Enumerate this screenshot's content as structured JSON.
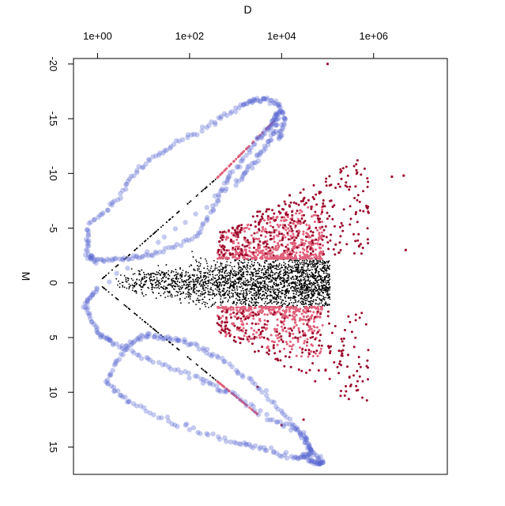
{
  "chart_data": {
    "type": "scatter",
    "title": "",
    "xlabel": "D",
    "ylabel": "M",
    "x_scale": "log10",
    "x_axis_position": "top",
    "y_axis_reversed": true,
    "y_axis_rotated_labels": true,
    "xlim": [
      0.3,
      40000000
    ],
    "ylim": [
      -20.5,
      17.5
    ],
    "x_ticks": [
      1,
      100,
      10000,
      1000000
    ],
    "x_tick_labels": [
      "1e+00",
      "1e+02",
      "1e+04",
      "1e+06"
    ],
    "y_ticks": [
      -20,
      -15,
      -10,
      -5,
      0,
      5,
      10,
      15
    ],
    "y_tick_labels": [
      "-20",
      "-15",
      "-10",
      "-5",
      "0",
      "5",
      "10",
      "15"
    ],
    "grid": false,
    "legend": "none",
    "series": [
      {
        "color": "#000000",
        "marker": "small dot",
        "description_points": "dense fan of points",
        "envelope": [
          [
            1,
            0
          ],
          [
            400,
            -9.6
          ],
          [
            400,
            9.0
          ]
        ]
      },
      {
        "color": "#9b0a2a",
        "marker": "dot",
        "points": [
          [
            1200,
            -2.5
          ],
          [
            3000,
            -6.5
          ],
          [
            6000,
            -4.0
          ],
          [
            15000,
            -8.0
          ],
          [
            30000,
            -5.5
          ],
          [
            80000,
            -7.0
          ],
          [
            200000,
            -9.5
          ],
          [
            2500000,
            -9.7
          ],
          [
            4500000,
            -9.8
          ],
          [
            5000000,
            -3.0
          ],
          [
            150000,
            -3.5
          ],
          [
            20000,
            5.0
          ],
          [
            5000,
            3.5
          ],
          [
            40000,
            6.5
          ],
          [
            90000,
            8.0
          ],
          [
            30000,
            12.5
          ],
          [
            10000,
            13.0
          ],
          [
            3000,
            9.5
          ],
          [
            600,
            4.0
          ],
          [
            100000,
            -20.0
          ]
        ]
      },
      {
        "color": "#e0607a",
        "marker": "dot",
        "description_points": "highlighted points at |M| > 2",
        "upper_edge": [
          [
            400,
            -9.6
          ],
          [
            7000,
            -14.8
          ]
        ],
        "lower_edge": [
          [
            400,
            9.0
          ],
          [
            3000,
            12.0
          ]
        ]
      },
      {
        "color": "#5a66d0",
        "marker": "translucent blob",
        "description_points": "closed contour of translucent blue points",
        "path": [
          [
            8000,
            -13.0
          ],
          [
            12000,
            -15.0
          ],
          [
            8000,
            -16.5
          ],
          [
            3000,
            -16.8
          ],
          [
            1500,
            -16.3
          ],
          [
            300,
            -14.5
          ],
          [
            40,
            -12.5
          ],
          [
            8,
            -10.5
          ],
          [
            2.5,
            -7.5
          ],
          [
            0.6,
            -5.0
          ],
          [
            0.6,
            -2.5
          ],
          [
            1,
            -2.0
          ],
          [
            4,
            -2.2
          ],
          [
            20,
            -2.6
          ],
          [
            150,
            -4.3
          ],
          [
            400,
            -7.5
          ],
          [
            800,
            -10.0
          ],
          [
            3000,
            -13.0
          ],
          [
            6000,
            -14.5
          ],
          [
            9000,
            -15.5
          ],
          [
            6000,
            -13.0
          ],
          [
            2500,
            -11.0
          ],
          [
            1000,
            -9.0
          ],
          [
            1,
            0.5
          ],
          [
            0.5,
            2.0
          ],
          [
            1,
            4.5
          ],
          [
            2,
            5.5
          ],
          [
            15,
            7.0
          ],
          [
            150,
            8.7
          ],
          [
            700,
            10.0
          ],
          [
            6000,
            12.5
          ],
          [
            30000,
            13.8
          ],
          [
            45000,
            15.5
          ],
          [
            20000,
            16.0
          ],
          [
            4000,
            15.2
          ],
          [
            800,
            14.5
          ],
          [
            60,
            13.0
          ],
          [
            5,
            11.0
          ],
          [
            1.5,
            9.0
          ],
          [
            4,
            6.0
          ],
          [
            10,
            4.8
          ],
          [
            30,
            5.0
          ],
          [
            100,
            5.5
          ],
          [
            500,
            7.0
          ],
          [
            3000,
            9.5
          ],
          [
            15000,
            12.5
          ],
          [
            40000,
            15.0
          ],
          [
            80000,
            16.5
          ],
          [
            55000,
            16.5
          ],
          [
            30000,
            15.8
          ]
        ]
      }
    ]
  }
}
